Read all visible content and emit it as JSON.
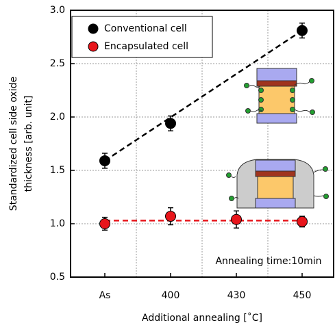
{
  "chart_data": {
    "type": "scatter",
    "categories": [
      "As",
      "400",
      "430",
      "450"
    ],
    "series": [
      {
        "name": "Conventional cell",
        "color": "#000000",
        "values": [
          1.59,
          1.94,
          null,
          2.81
        ],
        "errors": [
          0.07,
          0.07,
          null,
          0.07
        ],
        "fit": [
          1.59,
          2.81
        ]
      },
      {
        "name": "Encapsulated cell",
        "color": "#e8151b",
        "values": [
          1.0,
          1.07,
          1.04,
          1.02
        ],
        "errors": [
          0.06,
          0.08,
          0.08,
          0.05
        ],
        "fit": [
          1.03,
          1.03
        ]
      }
    ],
    "ylim": [
      0.5,
      3.0
    ],
    "yticks": [
      {
        "value": 0.5,
        "label": "0.5"
      },
      {
        "value": 1.0,
        "label": "1.0"
      },
      {
        "value": 1.5,
        "label": "1.5"
      },
      {
        "value": 2.0,
        "label": "2.0"
      },
      {
        "value": 2.5,
        "label": "2.5"
      },
      {
        "value": 3.0,
        "label": "3.0"
      }
    ],
    "grid": true,
    "x_label": "Additional annealing [˚C]",
    "y_label": [
      "Standardized cell side oxide",
      "thickness [arb. unit]"
    ],
    "annotation": "Annealing time:10min",
    "legend": "upper left"
  }
}
